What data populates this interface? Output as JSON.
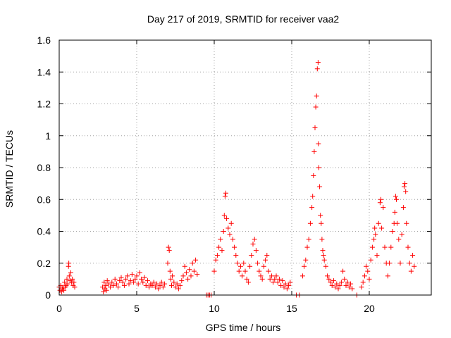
{
  "chart_data": {
    "type": "scatter",
    "title": "Day 217 of 2019, SRMTID for receiver vaa2",
    "xlabel": "GPS time / hours",
    "ylabel": "SRMTID / TECUs",
    "xlim": [
      0,
      24
    ],
    "ylim": [
      0,
      1.6
    ],
    "x_ticks": [
      0,
      5,
      10,
      15,
      20
    ],
    "x_tick_labels": [
      "0",
      "5",
      "10",
      "15",
      "20"
    ],
    "y_ticks": [
      0,
      0.2,
      0.4,
      0.6,
      0.8,
      1.0,
      1.2,
      1.4,
      1.6
    ],
    "y_tick_labels": [
      "0",
      "0.2",
      "0.4",
      "0.6",
      "0.8",
      "1",
      "1.2",
      "1.4",
      "1.6"
    ],
    "grid": true,
    "marker": "+",
    "series": [
      {
        "name": "SRMTID",
        "color": "#ff0000",
        "points": [
          [
            0.0,
            0.05
          ],
          [
            0.05,
            0.03
          ],
          [
            0.1,
            0.06
          ],
          [
            0.15,
            0.02
          ],
          [
            0.2,
            0.04
          ],
          [
            0.25,
            0.05
          ],
          [
            0.3,
            0.03
          ],
          [
            0.35,
            0.08
          ],
          [
            0.4,
            0.05
          ],
          [
            0.45,
            0.06
          ],
          [
            0.5,
            0.1
          ],
          [
            0.55,
            0.07
          ],
          [
            0.6,
            0.18
          ],
          [
            0.62,
            0.2
          ],
          [
            0.65,
            0.12
          ],
          [
            0.7,
            0.09
          ],
          [
            0.75,
            0.14
          ],
          [
            0.8,
            0.08
          ],
          [
            0.85,
            0.1
          ],
          [
            0.9,
            0.06
          ],
          [
            0.95,
            0.08
          ],
          [
            1.0,
            0.05
          ],
          [
            2.8,
            0.05
          ],
          [
            2.85,
            0.02
          ],
          [
            2.9,
            0.08
          ],
          [
            2.95,
            0.04
          ],
          [
            3.0,
            0.06
          ],
          [
            3.05,
            0.03
          ],
          [
            3.1,
            0.09
          ],
          [
            3.2,
            0.07
          ],
          [
            3.3,
            0.05
          ],
          [
            3.4,
            0.08
          ],
          [
            3.5,
            0.06
          ],
          [
            3.6,
            0.1
          ],
          [
            3.7,
            0.07
          ],
          [
            3.8,
            0.05
          ],
          [
            3.9,
            0.09
          ],
          [
            4.0,
            0.11
          ],
          [
            4.1,
            0.08
          ],
          [
            4.2,
            0.06
          ],
          [
            4.3,
            0.1
          ],
          [
            4.4,
            0.12
          ],
          [
            4.5,
            0.07
          ],
          [
            4.6,
            0.09
          ],
          [
            4.7,
            0.13
          ],
          [
            4.8,
            0.08
          ],
          [
            4.9,
            0.1
          ],
          [
            5.0,
            0.12
          ],
          [
            5.1,
            0.07
          ],
          [
            5.2,
            0.14
          ],
          [
            5.3,
            0.1
          ],
          [
            5.4,
            0.08
          ],
          [
            5.5,
            0.11
          ],
          [
            5.6,
            0.06
          ],
          [
            5.7,
            0.09
          ],
          [
            5.8,
            0.05
          ],
          [
            5.9,
            0.07
          ],
          [
            6.0,
            0.06
          ],
          [
            6.1,
            0.08
          ],
          [
            6.2,
            0.05
          ],
          [
            6.3,
            0.07
          ],
          [
            6.4,
            0.04
          ],
          [
            6.5,
            0.06
          ],
          [
            6.6,
            0.08
          ],
          [
            6.7,
            0.05
          ],
          [
            6.8,
            0.07
          ],
          [
            7.0,
            0.2
          ],
          [
            7.05,
            0.3
          ],
          [
            7.1,
            0.28
          ],
          [
            7.15,
            0.15
          ],
          [
            7.2,
            0.1
          ],
          [
            7.25,
            0.06
          ],
          [
            7.3,
            0.12
          ],
          [
            7.4,
            0.08
          ],
          [
            7.5,
            0.05
          ],
          [
            7.6,
            0.07
          ],
          [
            7.7,
            0.04
          ],
          [
            7.8,
            0.06
          ],
          [
            7.9,
            0.09
          ],
          [
            8.0,
            0.12
          ],
          [
            8.1,
            0.18
          ],
          [
            8.2,
            0.14
          ],
          [
            8.3,
            0.1
          ],
          [
            8.4,
            0.16
          ],
          [
            8.5,
            0.12
          ],
          [
            8.6,
            0.2
          ],
          [
            8.7,
            0.15
          ],
          [
            8.8,
            0.22
          ],
          [
            8.9,
            0.13
          ],
          [
            9.5,
            0.0
          ],
          [
            9.6,
            0.0
          ],
          [
            9.7,
            0.0
          ],
          [
            9.8,
            0.0
          ],
          [
            10.0,
            0.15
          ],
          [
            10.1,
            0.22
          ],
          [
            10.2,
            0.25
          ],
          [
            10.3,
            0.3
          ],
          [
            10.4,
            0.35
          ],
          [
            10.5,
            0.28
          ],
          [
            10.6,
            0.4
          ],
          [
            10.65,
            0.5
          ],
          [
            10.7,
            0.62
          ],
          [
            10.75,
            0.64
          ],
          [
            10.8,
            0.48
          ],
          [
            10.9,
            0.42
          ],
          [
            11.0,
            0.38
          ],
          [
            11.1,
            0.45
          ],
          [
            11.2,
            0.35
          ],
          [
            11.3,
            0.3
          ],
          [
            11.4,
            0.25
          ],
          [
            11.5,
            0.2
          ],
          [
            11.6,
            0.15
          ],
          [
            11.7,
            0.18
          ],
          [
            11.8,
            0.12
          ],
          [
            11.9,
            0.2
          ],
          [
            12.0,
            0.15
          ],
          [
            12.1,
            0.1
          ],
          [
            12.2,
            0.08
          ],
          [
            12.3,
            0.18
          ],
          [
            12.4,
            0.25
          ],
          [
            12.5,
            0.32
          ],
          [
            12.6,
            0.35
          ],
          [
            12.7,
            0.28
          ],
          [
            12.8,
            0.2
          ],
          [
            12.9,
            0.15
          ],
          [
            13.0,
            0.12
          ],
          [
            13.1,
            0.1
          ],
          [
            13.2,
            0.18
          ],
          [
            13.3,
            0.22
          ],
          [
            13.4,
            0.25
          ],
          [
            13.5,
            0.15
          ],
          [
            13.6,
            0.1
          ],
          [
            13.7,
            0.12
          ],
          [
            13.8,
            0.08
          ],
          [
            13.9,
            0.1
          ],
          [
            14.0,
            0.12
          ],
          [
            14.1,
            0.08
          ],
          [
            14.2,
            0.1
          ],
          [
            14.3,
            0.06
          ],
          [
            14.4,
            0.09
          ],
          [
            14.5,
            0.05
          ],
          [
            14.6,
            0.07
          ],
          [
            14.7,
            0.04
          ],
          [
            14.8,
            0.06
          ],
          [
            14.9,
            0.08
          ],
          [
            15.3,
            0.0
          ],
          [
            15.5,
            0.0
          ],
          [
            15.7,
            0.12
          ],
          [
            15.8,
            0.18
          ],
          [
            15.9,
            0.22
          ],
          [
            16.0,
            0.3
          ],
          [
            16.1,
            0.35
          ],
          [
            16.2,
            0.45
          ],
          [
            16.3,
            0.55
          ],
          [
            16.35,
            0.62
          ],
          [
            16.4,
            0.75
          ],
          [
            16.45,
            0.9
          ],
          [
            16.5,
            1.05
          ],
          [
            16.55,
            1.18
          ],
          [
            16.6,
            1.25
          ],
          [
            16.65,
            1.42
          ],
          [
            16.7,
            1.46
          ],
          [
            16.72,
            0.95
          ],
          [
            16.75,
            0.8
          ],
          [
            16.8,
            0.68
          ],
          [
            16.85,
            0.5
          ],
          [
            16.9,
            0.45
          ],
          [
            16.95,
            0.35
          ],
          [
            17.0,
            0.28
          ],
          [
            17.05,
            0.25
          ],
          [
            17.1,
            0.22
          ],
          [
            17.2,
            0.18
          ],
          [
            17.3,
            0.12
          ],
          [
            17.4,
            0.1
          ],
          [
            17.5,
            0.08
          ],
          [
            17.6,
            0.06
          ],
          [
            17.7,
            0.09
          ],
          [
            17.8,
            0.05
          ],
          [
            17.9,
            0.07
          ],
          [
            18.0,
            0.04
          ],
          [
            18.1,
            0.06
          ],
          [
            18.2,
            0.08
          ],
          [
            18.3,
            0.15
          ],
          [
            18.4,
            0.1
          ],
          [
            18.5,
            0.06
          ],
          [
            18.6,
            0.08
          ],
          [
            18.7,
            0.05
          ],
          [
            18.8,
            0.07
          ],
          [
            18.9,
            0.04
          ],
          [
            19.2,
            0.0
          ],
          [
            19.5,
            0.05
          ],
          [
            19.6,
            0.08
          ],
          [
            19.7,
            0.12
          ],
          [
            19.8,
            0.18
          ],
          [
            19.9,
            0.15
          ],
          [
            20.0,
            0.1
          ],
          [
            20.1,
            0.22
          ],
          [
            20.2,
            0.3
          ],
          [
            20.3,
            0.35
          ],
          [
            20.35,
            0.42
          ],
          [
            20.4,
            0.38
          ],
          [
            20.5,
            0.25
          ],
          [
            20.6,
            0.45
          ],
          [
            20.7,
            0.58
          ],
          [
            20.75,
            0.6
          ],
          [
            20.8,
            0.42
          ],
          [
            20.9,
            0.55
          ],
          [
            21.0,
            0.3
          ],
          [
            21.1,
            0.2
          ],
          [
            21.2,
            0.12
          ],
          [
            21.3,
            0.2
          ],
          [
            21.4,
            0.3
          ],
          [
            21.5,
            0.4
          ],
          [
            21.6,
            0.45
          ],
          [
            21.65,
            0.52
          ],
          [
            21.7,
            0.62
          ],
          [
            21.75,
            0.6
          ],
          [
            21.8,
            0.45
          ],
          [
            21.9,
            0.35
          ],
          [
            22.0,
            0.2
          ],
          [
            22.1,
            0.38
          ],
          [
            22.2,
            0.55
          ],
          [
            22.25,
            0.68
          ],
          [
            22.3,
            0.7
          ],
          [
            22.35,
            0.65
          ],
          [
            22.4,
            0.45
          ],
          [
            22.5,
            0.3
          ],
          [
            22.6,
            0.2
          ],
          [
            22.7,
            0.15
          ],
          [
            22.8,
            0.25
          ],
          [
            22.9,
            0.18
          ]
        ]
      }
    ]
  }
}
